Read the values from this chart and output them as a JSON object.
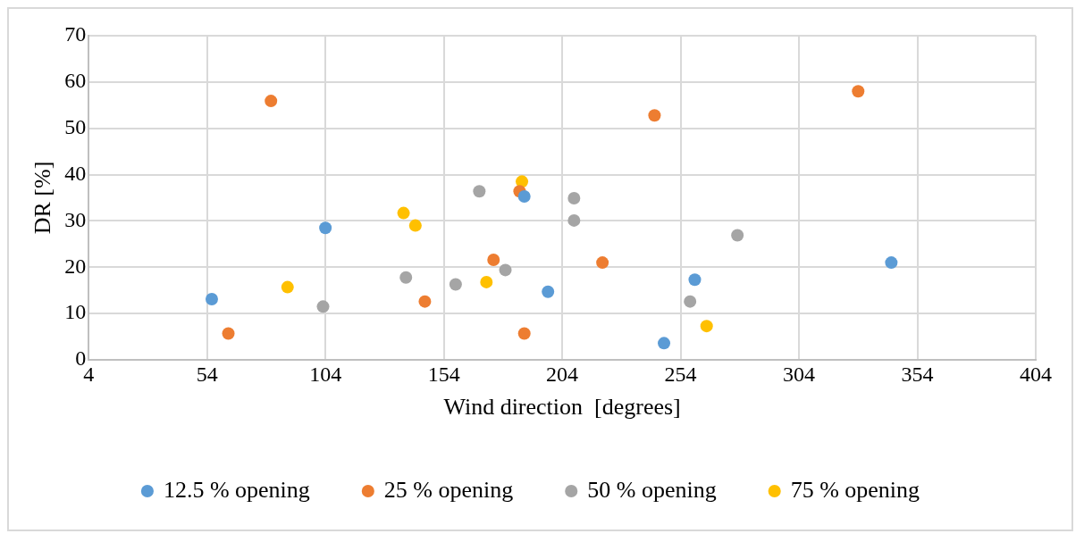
{
  "chart_data": {
    "type": "scatter",
    "xlabel": "Wind direction  [degrees]",
    "ylabel": "DR [%]",
    "xlim": [
      4,
      404
    ],
    "xticks": [
      4,
      54,
      104,
      154,
      204,
      254,
      304,
      354,
      404
    ],
    "ylim": [
      0,
      70
    ],
    "yticks": [
      0,
      10,
      20,
      30,
      40,
      50,
      60,
      70
    ],
    "grid": true,
    "legend": "bottom",
    "marker": "circle",
    "series": [
      {
        "name": "12.5 % opening",
        "color": "#5b9bd5",
        "x": [
          56,
          104,
          188,
          198,
          247,
          260,
          343
        ],
        "values": [
          13.1,
          28.5,
          35.3,
          14.7,
          3.6,
          17.3,
          21
        ]
      },
      {
        "name": "25 % opening",
        "color": "#ed7d31",
        "x": [
          81,
          63,
          146,
          175,
          186,
          188,
          221,
          243,
          329
        ],
        "values": [
          55.9,
          5.7,
          12.6,
          21.6,
          36.4,
          5.7,
          21,
          52.8,
          58
        ]
      },
      {
        "name": "50 % opening",
        "color": "#a5a5a5",
        "x": [
          103,
          138,
          159,
          169,
          180,
          209,
          209,
          258,
          278
        ],
        "values": [
          11.5,
          17.8,
          16.3,
          36.4,
          19.4,
          34.9,
          30.1,
          12.6,
          26.9
        ]
      },
      {
        "name": "75 % opening",
        "color": "#ffc000",
        "x": [
          88,
          137,
          142,
          172,
          187,
          265
        ],
        "values": [
          15.7,
          31.7,
          29,
          16.8,
          38.5,
          7.3
        ]
      }
    ]
  }
}
